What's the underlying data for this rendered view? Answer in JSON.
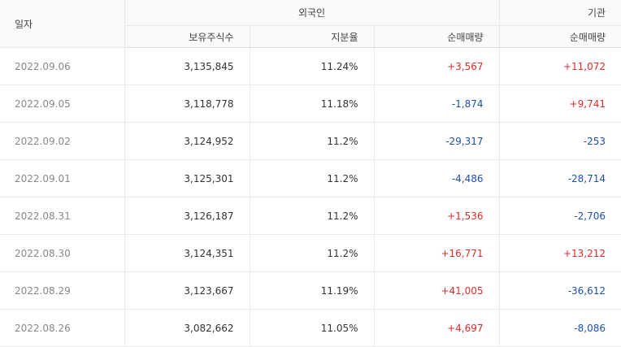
{
  "header": {
    "date": "일자",
    "foreign": "외국인",
    "institution": "기관",
    "holdings": "보유주식수",
    "ratio": "지분율",
    "foreign_net": "순매매량",
    "institution_net": "순매매량"
  },
  "colors": {
    "up": "#e22a2a",
    "down": "#1f4fad"
  },
  "rows": [
    {
      "date": "2022.09.06",
      "holdings": "3,135,845",
      "ratio": "11.24%",
      "foreign_net": "+3,567",
      "institution_net": "+11,072"
    },
    {
      "date": "2022.09.05",
      "holdings": "3,118,778",
      "ratio": "11.18%",
      "foreign_net": "-1,874",
      "institution_net": "+9,741"
    },
    {
      "date": "2022.09.02",
      "holdings": "3,124,952",
      "ratio": "11.2%",
      "foreign_net": "-29,317",
      "institution_net": "-253"
    },
    {
      "date": "2022.09.01",
      "holdings": "3,125,301",
      "ratio": "11.2%",
      "foreign_net": "-4,486",
      "institution_net": "-28,714"
    },
    {
      "date": "2022.08.31",
      "holdings": "3,126,187",
      "ratio": "11.2%",
      "foreign_net": "+1,536",
      "institution_net": "-2,706"
    },
    {
      "date": "2022.08.30",
      "holdings": "3,124,351",
      "ratio": "11.2%",
      "foreign_net": "+16,771",
      "institution_net": "+13,212"
    },
    {
      "date": "2022.08.29",
      "holdings": "3,123,667",
      "ratio": "11.19%",
      "foreign_net": "+41,005",
      "institution_net": "-36,612"
    },
    {
      "date": "2022.08.26",
      "holdings": "3,082,662",
      "ratio": "11.05%",
      "foreign_net": "+4,697",
      "institution_net": "-8,086"
    }
  ]
}
